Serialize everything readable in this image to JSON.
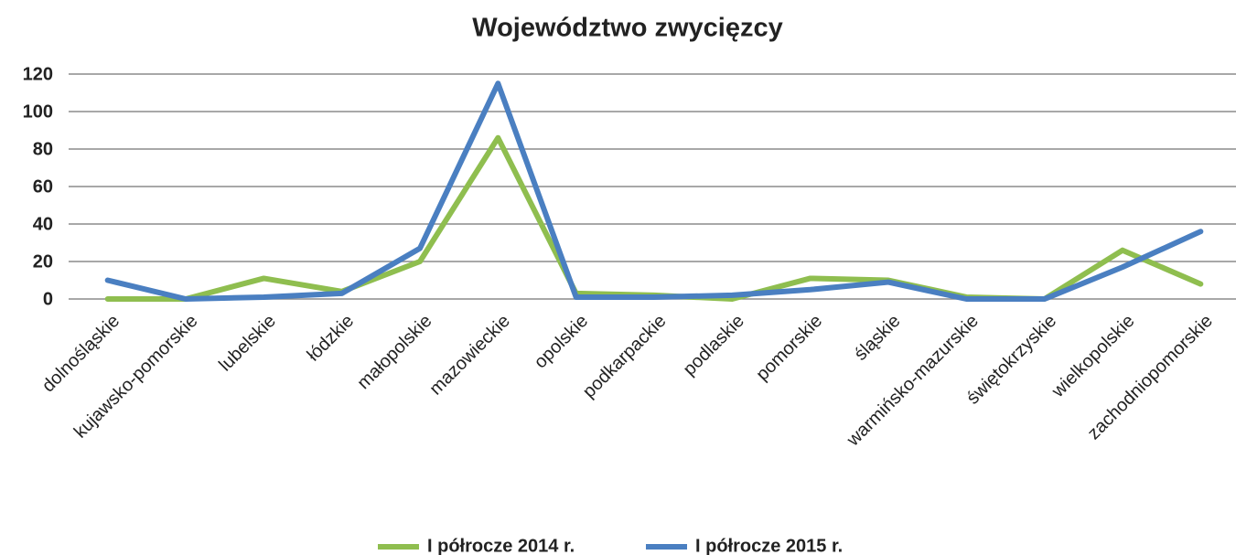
{
  "chart_data": {
    "type": "line",
    "title": "Województwo zwycięzcy",
    "categories": [
      "dolnośląskie",
      "kujawsko-pomorskie",
      "lubelskie",
      "łódzkie",
      "małopolskie",
      "mazowieckie",
      "opolskie",
      "podkarpackie",
      "podlaskie",
      "pomorskie",
      "śląskie",
      "warmińsko-mazurskie",
      "świętokrzyskie",
      "wielkopolskie",
      "zachodniopomorskie"
    ],
    "series": [
      {
        "name": "I półrocze 2014 r.",
        "color": "#8fbe4f",
        "values": [
          0,
          0,
          11,
          4,
          20,
          86,
          3,
          2,
          0,
          11,
          10,
          1,
          0,
          26,
          8
        ]
      },
      {
        "name": "I półrocze 2015 r.",
        "color": "#4a7fc1",
        "values": [
          10,
          0,
          1,
          3,
          27,
          115,
          1,
          1,
          2,
          5,
          9,
          0,
          0,
          17,
          36
        ]
      }
    ],
    "ylim": [
      0,
      120
    ],
    "yticks": [
      0,
      20,
      40,
      60,
      80,
      100,
      120
    ],
    "grid": true,
    "legend": "bottom"
  }
}
